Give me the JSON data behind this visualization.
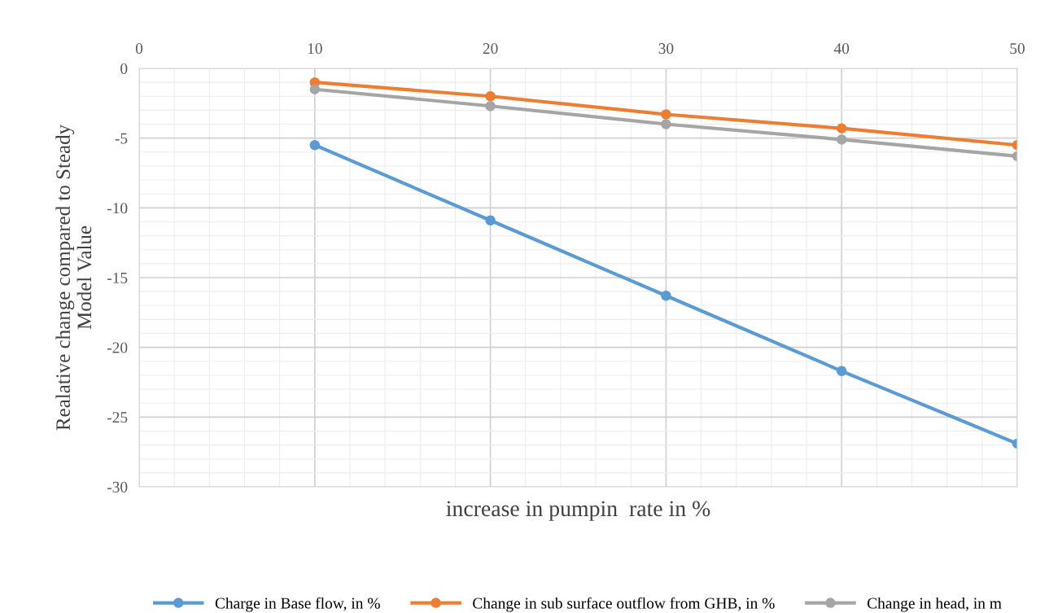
{
  "chart_data": {
    "type": "line",
    "xlabel": "increase in pumpin  rate in %",
    "ylabel": "Realative change compared to Steady\nModel Value",
    "x": [
      10,
      20,
      30,
      40,
      50
    ],
    "series": [
      {
        "name": "Charge in Base flow, in %",
        "color": "#5b9bd5",
        "values": [
          -5.5,
          -10.9,
          -16.3,
          -21.7,
          -26.9
        ]
      },
      {
        "name": "Change in sub surface outflow from GHB, in %",
        "color": "#ed7d31",
        "values": [
          -1.0,
          -2.0,
          -3.3,
          -4.3,
          -5.5
        ]
      },
      {
        "name": "Change in head, in m",
        "color": "#a5a5a5",
        "values": [
          -1.5,
          -2.7,
          -4.0,
          -5.1,
          -6.3
        ]
      }
    ],
    "xlim": [
      0,
      50
    ],
    "xticks": [
      0,
      10,
      20,
      30,
      40,
      50
    ],
    "ylim": [
      -30,
      0
    ],
    "yticks": [
      -30,
      -25,
      -20,
      -15,
      -10,
      -5,
      0
    ],
    "grid": true,
    "legend": "bottom",
    "marker": "circle",
    "line_style": "solid"
  }
}
